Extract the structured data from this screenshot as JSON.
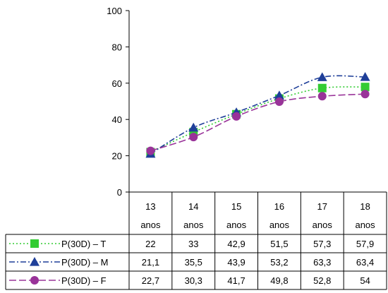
{
  "chart_data": {
    "type": "line",
    "title": "",
    "xlabel": "",
    "ylabel": "",
    "ylim": [
      0,
      100
    ],
    "yticks": [
      "0",
      "20",
      "40",
      "60",
      "80",
      "100"
    ],
    "categories": [
      {
        "top": "13",
        "bottom": "anos"
      },
      {
        "top": "14",
        "bottom": "anos"
      },
      {
        "top": "15",
        "bottom": "anos"
      },
      {
        "top": "16",
        "bottom": "anos"
      },
      {
        "top": "17",
        "bottom": "anos"
      },
      {
        "top": "18",
        "bottom": "anos"
      }
    ],
    "legend_placement": "data-table",
    "series": [
      {
        "name": "P(30D) – T",
        "values": [
          22,
          33,
          42.9,
          51.5,
          57.3,
          57.9
        ],
        "labels": [
          "22",
          "33",
          "42,9",
          "51,5",
          "57,3",
          "57,9"
        ],
        "color": "#33cc33",
        "marker": "square",
        "dash": "dotted"
      },
      {
        "name": "P(30D) – M",
        "values": [
          21.1,
          35.5,
          43.9,
          53.2,
          63.3,
          63.4
        ],
        "labels": [
          "21,1",
          "35,5",
          "43,9",
          "53,2",
          "63,3",
          "63,4"
        ],
        "color": "#1f3f99",
        "marker": "triangle",
        "dash": "dashdot"
      },
      {
        "name": "P(30D) – F",
        "values": [
          22.7,
          30.3,
          41.7,
          49.8,
          52.8,
          54
        ],
        "labels": [
          "22,7",
          "30,3",
          "41,7",
          "49,8",
          "52,8",
          "54"
        ],
        "color": "#993399",
        "marker": "circle",
        "dash": "dashed"
      }
    ]
  }
}
